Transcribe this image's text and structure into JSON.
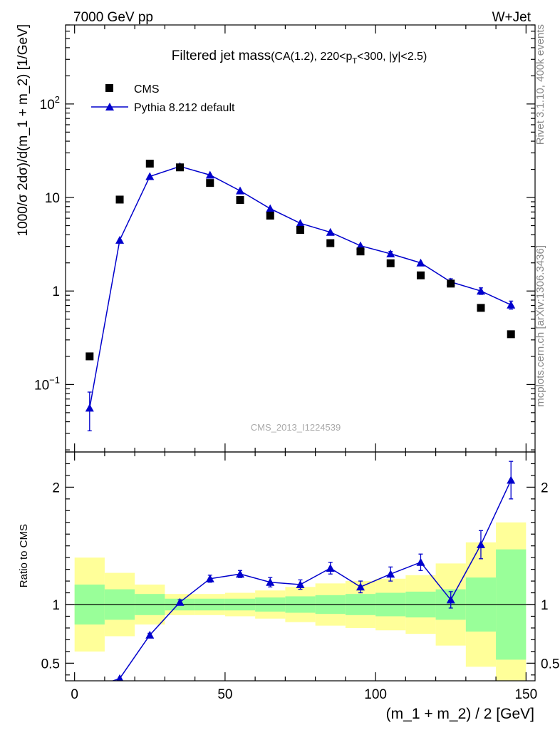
{
  "header": {
    "left": "7000 GeV pp",
    "right": "W+Jet"
  },
  "title": {
    "main": "Filtered jet mass",
    "sub_prefix": "(CA(1.2), 220<p",
    "sub_subscript": "T",
    "sub_suffix": "<300, |y|<2.5)"
  },
  "side_labels": {
    "rivet": "Rivet 3.1.10,  400k events",
    "mcplots": "mcplots.cern.ch [arXiv:1306.3436]"
  },
  "watermark": "CMS_2013_I1224539",
  "chart_data": [
    {
      "type": "scatter",
      "panel": "main",
      "yscale": "log",
      "xlim": [
        -3,
        153
      ],
      "ylim": [
        0.019,
        700
      ],
      "ylabel": "1000/σ 2dσ)/d(m_1 + m_2) [1/GeV]",
      "y_ticks": [
        {
          "value": 0.1,
          "label": "10",
          "exp": "−1"
        },
        {
          "value": 1,
          "label": "1",
          "exp": ""
        },
        {
          "value": 10,
          "label": "10",
          "exp": ""
        },
        {
          "value": 100,
          "label": "10",
          "exp": "2"
        }
      ],
      "legend_position": "top-left",
      "series": [
        {
          "name": "CMS",
          "marker": "square",
          "color": "#000000",
          "x": [
            5,
            15,
            25,
            35,
            45,
            55,
            65,
            75,
            85,
            95,
            105,
            115,
            125,
            135,
            145
          ],
          "y": [
            0.2,
            9.5,
            23.0,
            21.0,
            14.3,
            9.4,
            6.4,
            4.5,
            3.25,
            2.65,
            1.98,
            1.47,
            1.2,
            0.66,
            0.345
          ]
        },
        {
          "name": "Pythia 8.212 default",
          "marker": "triangle",
          "color": "#0000cc",
          "x": [
            5,
            15,
            25,
            35,
            45,
            55,
            65,
            75,
            85,
            95,
            105,
            115,
            125,
            135,
            145
          ],
          "y": [
            0.056,
            3.5,
            16.8,
            21.5,
            17.4,
            11.8,
            7.6,
            5.3,
            4.25,
            3.05,
            2.5,
            2.0,
            1.25,
            1.0,
            0.71
          ],
          "y_err_low": [
            0.024,
            0.1,
            0.3,
            0.4,
            0.4,
            0.3,
            0.3,
            0.2,
            0.2,
            0.15,
            0.15,
            0.1,
            0.1,
            0.08,
            0.07
          ],
          "y_err_high": [
            0.027,
            0.1,
            0.3,
            0.4,
            0.4,
            0.3,
            0.3,
            0.2,
            0.2,
            0.15,
            0.15,
            0.1,
            0.1,
            0.08,
            0.07
          ]
        }
      ]
    },
    {
      "type": "line",
      "panel": "ratio",
      "yscale": "linear",
      "xlim": [
        -3,
        153
      ],
      "ylim": [
        0.35,
        2.3
      ],
      "ylabel": "Ratio to CMS",
      "xlabel": "(m_1 + m_2) / 2 [GeV]",
      "x_ticks": [
        0,
        50,
        100,
        150
      ],
      "y_ticks": [
        0.5,
        1,
        2
      ],
      "reference_line": 1,
      "bands": {
        "edges": [
          0,
          10,
          20,
          30,
          40,
          50,
          60,
          70,
          80,
          90,
          100,
          110,
          120,
          130,
          140,
          150
        ],
        "inner_color": "#99ff99",
        "outer_color": "#ffff99",
        "inner_low": [
          0.83,
          0.87,
          0.91,
          0.95,
          0.95,
          0.95,
          0.94,
          0.93,
          0.92,
          0.91,
          0.9,
          0.89,
          0.87,
          0.77,
          0.53
        ],
        "inner_high": [
          1.17,
          1.13,
          1.09,
          1.05,
          1.05,
          1.05,
          1.06,
          1.07,
          1.08,
          1.09,
          1.1,
          1.11,
          1.13,
          1.23,
          1.47
        ],
        "outer_low": [
          0.6,
          0.73,
          0.83,
          0.91,
          0.91,
          0.9,
          0.88,
          0.85,
          0.82,
          0.8,
          0.78,
          0.75,
          0.65,
          0.47,
          0.3
        ],
        "outer_high": [
          1.4,
          1.27,
          1.17,
          1.09,
          1.09,
          1.1,
          1.12,
          1.15,
          1.18,
          1.2,
          1.22,
          1.25,
          1.35,
          1.53,
          1.7
        ]
      },
      "series": [
        {
          "name": "Pythia 8.212 default",
          "color": "#0000cc",
          "x": [
            5,
            15,
            25,
            35,
            45,
            55,
            65,
            75,
            85,
            95,
            105,
            115,
            125,
            135,
            145
          ],
          "y": [
            0.28,
            0.37,
            0.74,
            1.02,
            1.22,
            1.26,
            1.19,
            1.17,
            1.31,
            1.15,
            1.26,
            1.36,
            1.04,
            1.51,
            2.06
          ],
          "err": [
            0,
            0,
            0.015,
            0.02,
            0.03,
            0.03,
            0.04,
            0.04,
            0.05,
            0.05,
            0.06,
            0.07,
            0.07,
            0.12,
            0.16
          ]
        }
      ]
    }
  ]
}
